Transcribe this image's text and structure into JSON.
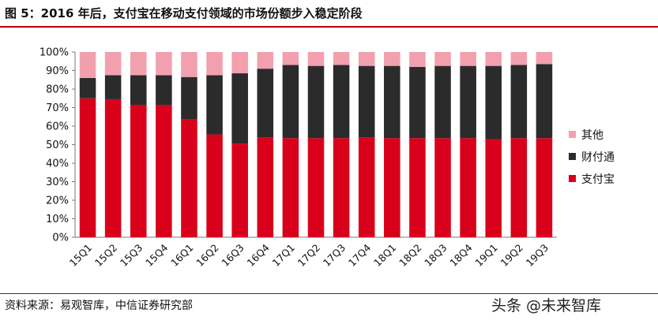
{
  "figure": {
    "title": "图 5：2016 年后，支付宝在移动支付领域的市场份额步入稳定阶段",
    "source": "资料来源：易观智库，中信证券研究部",
    "watermark": "头条 @未来智库"
  },
  "chart_data": {
    "type": "bar",
    "stacked": true,
    "categories": [
      "15Q1",
      "15Q2",
      "15Q3",
      "15Q4",
      "16Q1",
      "16Q2",
      "16Q3",
      "16Q4",
      "17Q1",
      "17Q2",
      "17Q3",
      "17Q4",
      "18Q1",
      "18Q2",
      "18Q3",
      "18Q4",
      "19Q1",
      "19Q2",
      "19Q3"
    ],
    "series": [
      {
        "name": "支付宝",
        "color": "#d9001b",
        "values": [
          75,
          74.5,
          71.5,
          71.5,
          63.5,
          55.5,
          50.5,
          54,
          53.5,
          53.5,
          53.5,
          54,
          53.5,
          53.5,
          53.5,
          53.5,
          53,
          53.5,
          53.5
        ]
      },
      {
        "name": "财付通",
        "color": "#2b2b2b",
        "values": [
          11,
          13,
          16,
          16,
          23,
          32,
          38,
          37,
          39.5,
          39,
          39.5,
          38.5,
          39,
          38.5,
          39,
          39,
          39.5,
          39.5,
          40
        ]
      },
      {
        "name": "其他",
        "color": "#f2a0ae",
        "values": [
          14,
          12.5,
          12.5,
          12.5,
          13.5,
          12.5,
          11.5,
          9,
          7,
          7.5,
          7,
          7.5,
          7.5,
          8,
          7.5,
          7.5,
          7.5,
          7,
          6.5
        ]
      }
    ],
    "y_ticks": [
      "0%",
      "10%",
      "20%",
      "30%",
      "40%",
      "50%",
      "60%",
      "70%",
      "80%",
      "90%",
      "100%"
    ],
    "ylim": [
      0,
      100
    ],
    "legend_position": "right",
    "legend_order": [
      "其他",
      "财付通",
      "支付宝"
    ],
    "grid": false
  }
}
